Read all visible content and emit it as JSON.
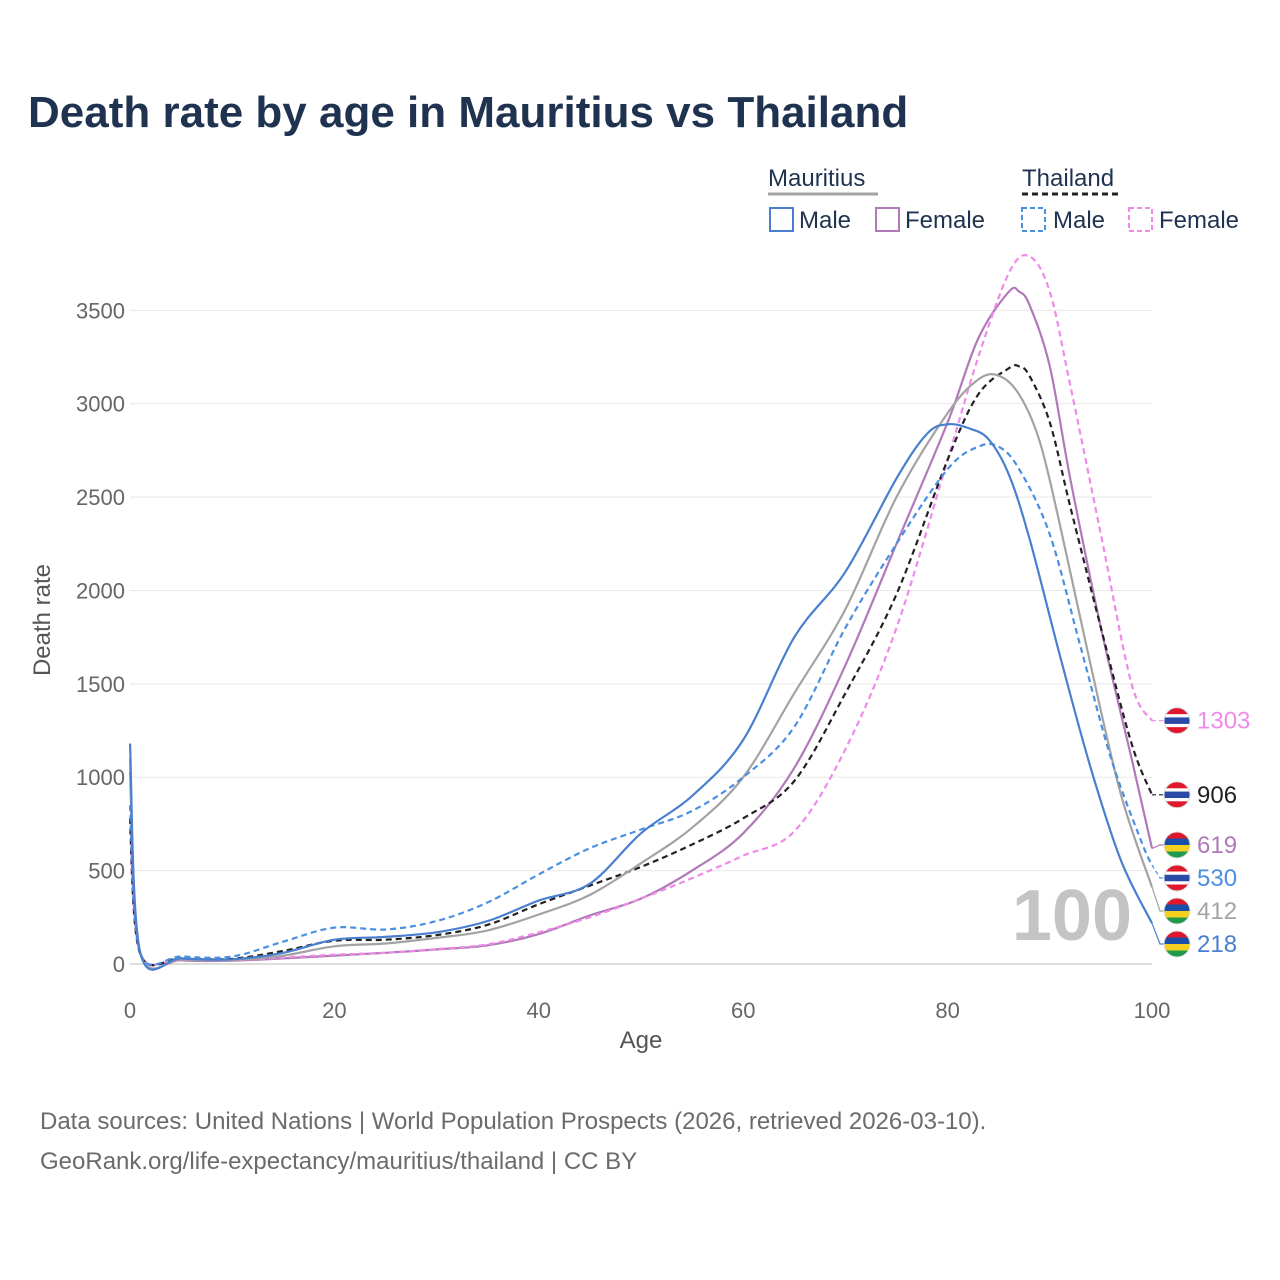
{
  "title": "Death rate by age in Mauritius vs Thailand",
  "source_line1": "Data sources: United Nations | World Population Prospects (2026, retrieved 2026-03-10).",
  "source_line2": "GeoRank.org/life-expectancy/mauritius/thailand | CC BY",
  "chart_data": {
    "type": "line",
    "xlabel": "Age",
    "ylabel": "Death rate",
    "xlim": [
      0,
      100
    ],
    "ylim": [
      0,
      3700
    ],
    "xticks": [
      0,
      20,
      40,
      60,
      80,
      100
    ],
    "yticks": [
      0,
      500,
      1000,
      1500,
      2000,
      2500,
      3000,
      3500
    ],
    "grid": true,
    "watermark_value": "100",
    "legend": {
      "placement": "top-right",
      "groups": [
        {
          "name": "Mauritius",
          "entries": [
            "Male",
            "Female"
          ]
        },
        {
          "name": "Thailand",
          "entries": [
            "Male",
            "Female"
          ]
        }
      ]
    },
    "series": [
      {
        "name": "Mauritius Female",
        "color": "#b07ab8",
        "dashed": false,
        "end_label": "619",
        "flag": "mauritius",
        "points": [
          [
            0,
            1030
          ],
          [
            1,
            60
          ],
          [
            5,
            20
          ],
          [
            10,
            18
          ],
          [
            15,
            30
          ],
          [
            20,
            45
          ],
          [
            25,
            60
          ],
          [
            30,
            78
          ],
          [
            35,
            100
          ],
          [
            40,
            160
          ],
          [
            45,
            260
          ],
          [
            50,
            350
          ],
          [
            55,
            500
          ],
          [
            60,
            700
          ],
          [
            65,
            1050
          ],
          [
            70,
            1600
          ],
          [
            75,
            2250
          ],
          [
            80,
            2900
          ],
          [
            83,
            3350
          ],
          [
            86,
            3600
          ],
          [
            87,
            3600
          ],
          [
            88,
            3530
          ],
          [
            90,
            3200
          ],
          [
            92,
            2600
          ],
          [
            95,
            1800
          ],
          [
            98,
            1100
          ],
          [
            100,
            619
          ]
        ]
      },
      {
        "name": "Thailand Female",
        "color": "#f08ae8",
        "dashed": true,
        "end_label": "1303",
        "flag": "thailand",
        "points": [
          [
            0,
            720
          ],
          [
            1,
            55
          ],
          [
            5,
            25
          ],
          [
            10,
            22
          ],
          [
            15,
            35
          ],
          [
            20,
            50
          ],
          [
            25,
            60
          ],
          [
            30,
            80
          ],
          [
            35,
            105
          ],
          [
            40,
            170
          ],
          [
            45,
            250
          ],
          [
            50,
            350
          ],
          [
            55,
            460
          ],
          [
            60,
            580
          ],
          [
            65,
            710
          ],
          [
            70,
            1150
          ],
          [
            75,
            1800
          ],
          [
            80,
            2700
          ],
          [
            83,
            3250
          ],
          [
            86,
            3700
          ],
          [
            88,
            3790
          ],
          [
            90,
            3600
          ],
          [
            92,
            3100
          ],
          [
            95,
            2300
          ],
          [
            98,
            1500
          ],
          [
            100,
            1303
          ]
        ]
      },
      {
        "name": "Thailand Total",
        "color": "#222222",
        "dashed": true,
        "end_label": "906",
        "flag": "thailand",
        "points": [
          [
            0,
            780
          ],
          [
            1,
            55
          ],
          [
            5,
            30
          ],
          [
            10,
            28
          ],
          [
            15,
            70
          ],
          [
            20,
            125
          ],
          [
            25,
            130
          ],
          [
            30,
            155
          ],
          [
            35,
            210
          ],
          [
            40,
            320
          ],
          [
            45,
            420
          ],
          [
            50,
            520
          ],
          [
            55,
            640
          ],
          [
            60,
            780
          ],
          [
            65,
            980
          ],
          [
            70,
            1450
          ],
          [
            75,
            1980
          ],
          [
            80,
            2700
          ],
          [
            83,
            3050
          ],
          [
            86,
            3190
          ],
          [
            87,
            3200
          ],
          [
            88,
            3150
          ],
          [
            90,
            2900
          ],
          [
            92,
            2450
          ],
          [
            95,
            1800
          ],
          [
            98,
            1180
          ],
          [
            100,
            906
          ]
        ]
      },
      {
        "name": "Mauritius Total",
        "color": "#a3a3a3",
        "dashed": false,
        "end_label": "412",
        "flag": "mauritius",
        "points": [
          [
            0,
            1100
          ],
          [
            1,
            62
          ],
          [
            5,
            25
          ],
          [
            10,
            22
          ],
          [
            15,
            45
          ],
          [
            20,
            95
          ],
          [
            25,
            110
          ],
          [
            30,
            140
          ],
          [
            35,
            180
          ],
          [
            40,
            265
          ],
          [
            45,
            370
          ],
          [
            50,
            540
          ],
          [
            55,
            730
          ],
          [
            60,
            1000
          ],
          [
            65,
            1450
          ],
          [
            70,
            1900
          ],
          [
            75,
            2500
          ],
          [
            80,
            2950
          ],
          [
            83,
            3130
          ],
          [
            85,
            3150
          ],
          [
            87,
            3050
          ],
          [
            89,
            2800
          ],
          [
            91,
            2350
          ],
          [
            94,
            1600
          ],
          [
            97,
            900
          ],
          [
            100,
            412
          ]
        ]
      },
      {
        "name": "Thailand Male",
        "color": "#4a90e2",
        "dashed": true,
        "end_label": "530",
        "flag": "thailand",
        "points": [
          [
            0,
            850
          ],
          [
            1,
            60
          ],
          [
            5,
            40
          ],
          [
            10,
            40
          ],
          [
            15,
            120
          ],
          [
            20,
            195
          ],
          [
            25,
            185
          ],
          [
            30,
            230
          ],
          [
            35,
            330
          ],
          [
            40,
            480
          ],
          [
            45,
            620
          ],
          [
            50,
            720
          ],
          [
            55,
            820
          ],
          [
            60,
            1000
          ],
          [
            65,
            1270
          ],
          [
            70,
            1800
          ],
          [
            75,
            2250
          ],
          [
            80,
            2650
          ],
          [
            83,
            2770
          ],
          [
            85,
            2770
          ],
          [
            87,
            2650
          ],
          [
            90,
            2300
          ],
          [
            93,
            1700
          ],
          [
            96,
            1100
          ],
          [
            99,
            650
          ],
          [
            100,
            530
          ]
        ]
      },
      {
        "name": "Mauritius Male",
        "color": "#4a7fcf",
        "dashed": false,
        "end_label": "218",
        "flag": "mauritius",
        "points": [
          [
            0,
            1180
          ],
          [
            1,
            62
          ],
          [
            5,
            30
          ],
          [
            10,
            25
          ],
          [
            15,
            60
          ],
          [
            20,
            130
          ],
          [
            25,
            145
          ],
          [
            30,
            170
          ],
          [
            35,
            230
          ],
          [
            40,
            340
          ],
          [
            45,
            430
          ],
          [
            50,
            700
          ],
          [
            55,
            900
          ],
          [
            60,
            1200
          ],
          [
            65,
            1750
          ],
          [
            70,
            2100
          ],
          [
            75,
            2600
          ],
          [
            78,
            2840
          ],
          [
            80,
            2890
          ],
          [
            82,
            2870
          ],
          [
            84,
            2810
          ],
          [
            86,
            2620
          ],
          [
            88,
            2280
          ],
          [
            91,
            1650
          ],
          [
            94,
            1050
          ],
          [
            97,
            550
          ],
          [
            100,
            218
          ]
        ]
      }
    ]
  }
}
